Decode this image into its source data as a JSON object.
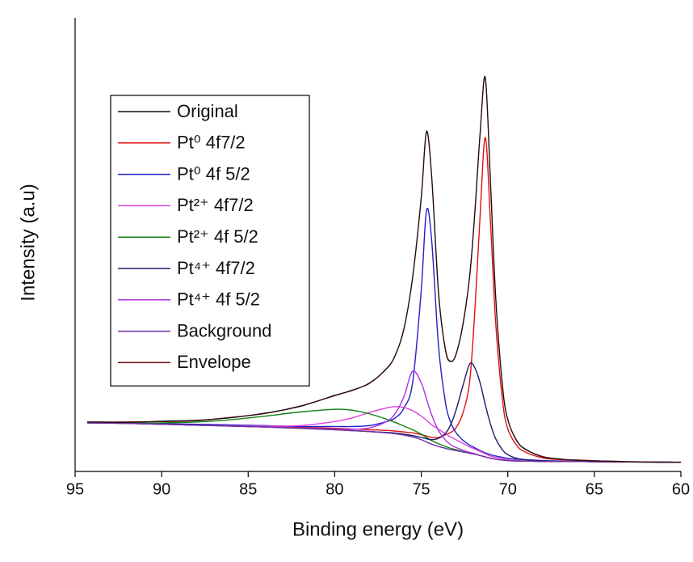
{
  "chart_data": {
    "type": "line",
    "xlabel": "Binding energy (eV)",
    "ylabel": "Intensity (a.u)",
    "xlim": [
      95,
      60
    ],
    "xticks": [
      95,
      90,
      85,
      80,
      75,
      70,
      65,
      60
    ],
    "ylim": [
      0,
      100
    ],
    "legend": "upper left",
    "x": [
      94.3,
      92,
      90,
      88,
      86,
      84,
      82,
      80,
      79,
      78,
      77,
      76.5,
      76,
      75.5,
      75,
      74.7,
      74.4,
      74,
      73.6,
      73.3,
      73,
      72.6,
      72.2,
      71.9,
      71.6,
      71.3,
      71,
      70.7,
      70.3,
      70,
      69.5,
      69,
      68,
      67,
      66,
      64,
      62,
      60
    ],
    "series": [
      {
        "name": "Original",
        "color": "#111111",
        "values": [
          10.9,
          10.8,
          11.1,
          11.3,
          11.8,
          12.9,
          14.3,
          16.8,
          17.8,
          19.5,
          22.6,
          25.7,
          31.4,
          42.9,
          60.3,
          75.0,
          65.0,
          39.4,
          26.6,
          24.2,
          25.8,
          32.1,
          43.3,
          57.2,
          74.7,
          86.9,
          63.5,
          38.5,
          18.4,
          11.5,
          6.8,
          5.0,
          3.2,
          2.8,
          2.4,
          2.3,
          2.0,
          2.1
        ]
      },
      {
        "name": "Pt⁰ 4f7/2",
        "color": "#e01010",
        "values": [
          10.8,
          10.7,
          10.5,
          10.3,
          10.1,
          9.9,
          9.7,
          9.5,
          9.35,
          9.2,
          9.05,
          8.9,
          8.7,
          8.5,
          8.1,
          7.8,
          7.5,
          7.5,
          8.1,
          8.6,
          9.6,
          12.8,
          20,
          35.8,
          56.5,
          73.6,
          54.9,
          32.7,
          15.5,
          9.4,
          5.8,
          4.3,
          3.0,
          2.6,
          2.5,
          2.2,
          2.1,
          2.0
        ]
      },
      {
        "name": "Pt⁰ 4f 5/2",
        "color": "#2020c8",
        "values": [
          10.8,
          10.7,
          10.55,
          10.4,
          10.25,
          10.1,
          9.9,
          9.9,
          9.9,
          10.1,
          11.0,
          11.8,
          14.0,
          19.6,
          40.0,
          57.5,
          51.0,
          27.5,
          15.1,
          10.8,
          8.6,
          6.9,
          5.8,
          5.2,
          4.6,
          4.1,
          3.7,
          3.4,
          3.1,
          2.9,
          2.7,
          2.6,
          2.4,
          2.3,
          2.2,
          2.1,
          2.1,
          2.0
        ]
      },
      {
        "name": "Pt²⁺ 4f7/2",
        "color": "#e040e0",
        "values": [
          10.7,
          10.6,
          10.4,
          10.2,
          10.1,
          10.0,
          10.1,
          11.0,
          11.8,
          13.0,
          14.0,
          14.3,
          14.1,
          13.4,
          12.2,
          11.3,
          10.3,
          9.3,
          8.3,
          7.6,
          7.0,
          6.2,
          5.4,
          4.9,
          4.4,
          3.9,
          3.4,
          3.1,
          2.8,
          2.6,
          2.4,
          2.3,
          2.2,
          2.2,
          2.2,
          2.1,
          2.1,
          2.0
        ]
      },
      {
        "name": "Pt²⁺ 4f 5/2",
        "color": "#108010",
        "values": [
          10.7,
          10.7,
          10.7,
          10.9,
          11.4,
          12.2,
          13.1,
          13.7,
          13.5,
          12.7,
          11.5,
          10.8,
          10.0,
          9.2,
          8.2,
          7.5,
          6.8,
          6.1,
          5.5,
          5.1,
          4.8,
          4.4,
          4.0,
          3.8,
          3.5,
          3.2,
          2.9,
          2.7,
          2.5,
          2.4,
          2.3,
          2.3,
          2.2,
          2.2,
          2.2,
          2.1,
          2.1,
          2.0
        ]
      },
      {
        "name": "Pt⁴⁺ 4f7/2",
        "color": "#1c1c70",
        "values": [
          10.7,
          10.6,
          10.4,
          10.2,
          10.0,
          9.8,
          9.5,
          9.2,
          9.0,
          8.8,
          8.6,
          8.45,
          8.2,
          7.9,
          7.5,
          7.2,
          7.0,
          7.3,
          8.4,
          10.3,
          13.4,
          18.8,
          23.7,
          22.8,
          19.5,
          14.7,
          10.4,
          7.2,
          4.7,
          3.7,
          2.9,
          2.6,
          2.3,
          2.2,
          2.2,
          2.1,
          2.1,
          2.0
        ]
      },
      {
        "name": "Pt⁴⁺ 4f 5/2",
        "color": "#b030e0",
        "values": [
          10.7,
          10.6,
          10.4,
          10.2,
          10.0,
          9.8,
          9.55,
          9.35,
          9.3,
          9.6,
          11.0,
          12.8,
          16.5,
          22.1,
          19.5,
          16.0,
          12.5,
          9.0,
          6.9,
          5.9,
          5.3,
          4.7,
          4.2,
          3.9,
          3.5,
          3.2,
          2.9,
          2.7,
          2.5,
          2.4,
          2.3,
          2.3,
          2.2,
          2.2,
          2.2,
          2.1,
          2.1,
          2.0
        ]
      },
      {
        "name": "Background",
        "color": "#7030a0",
        "values": [
          10.7,
          10.6,
          10.4,
          10.2,
          10.0,
          9.8,
          9.5,
          9.2,
          9.0,
          8.8,
          8.5,
          8.3,
          8.0,
          7.6,
          7.0,
          6.5,
          6.0,
          5.5,
          5.1,
          4.8,
          4.6,
          4.3,
          4.0,
          3.8,
          3.5,
          3.2,
          2.9,
          2.7,
          2.5,
          2.4,
          2.3,
          2.3,
          2.2,
          2.2,
          2.2,
          2.1,
          2.1,
          2.0
        ]
      },
      {
        "name": "Envelope",
        "color": "#6b1010",
        "values": [
          10.9,
          10.9,
          11.0,
          11.2,
          11.9,
          12.8,
          14.4,
          16.7,
          17.9,
          19.4,
          22.7,
          25.6,
          31.5,
          42.7,
          60.5,
          74.8,
          65.1,
          39.2,
          26.8,
          24.3,
          25.7,
          32.3,
          43.1,
          57.4,
          74.5,
          86.7,
          63.7,
          38.3,
          18.6,
          11.4,
          6.9,
          4.9,
          3.3,
          2.7,
          2.5,
          2.2,
          2.1,
          2.0
        ]
      }
    ]
  }
}
